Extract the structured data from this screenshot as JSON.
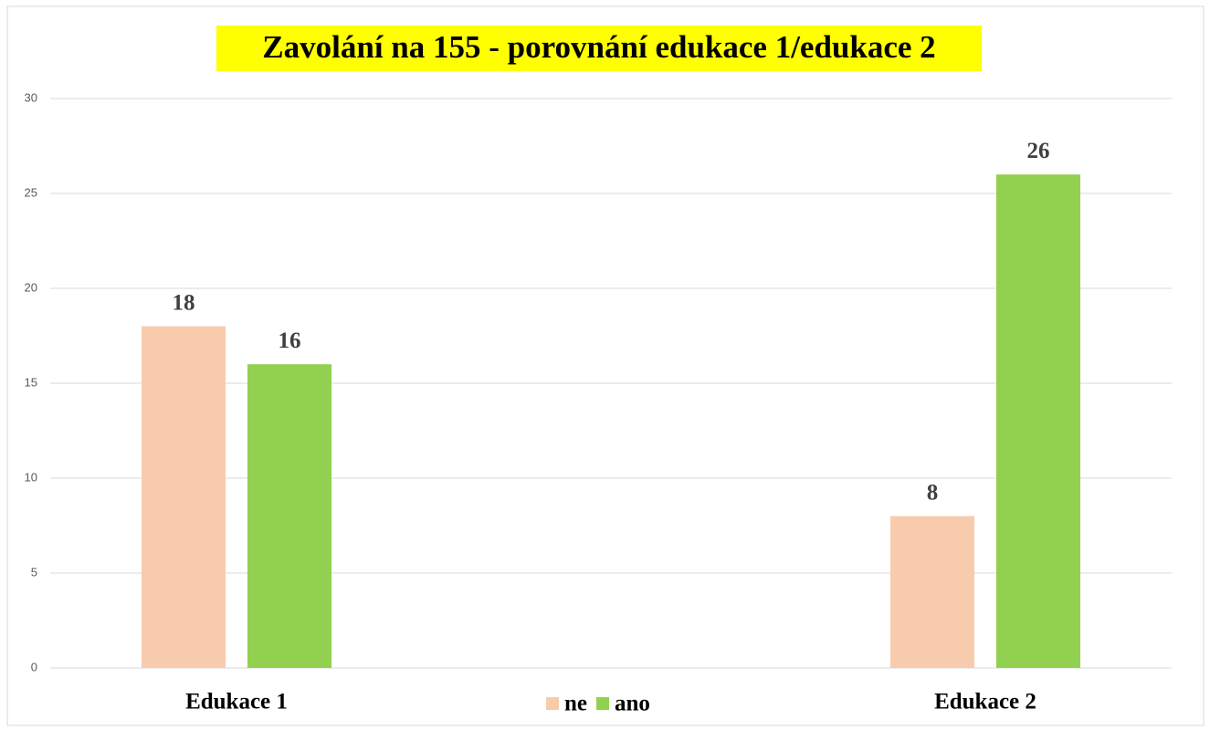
{
  "chart_data": {
    "type": "bar",
    "title": "Zavolání na 155 - porovnání edukace 1/edukace 2",
    "categories": [
      "Edukace 1",
      "Edukace 2"
    ],
    "series": [
      {
        "name": "ne",
        "color": "#f8cbad",
        "values": [
          18,
          8
        ]
      },
      {
        "name": "ano",
        "color": "#92d050",
        "values": [
          16,
          26
        ]
      }
    ],
    "ylim": [
      0,
      30
    ],
    "yticks": [
      0,
      5,
      10,
      15,
      20,
      25,
      30
    ],
    "grid": true,
    "legend": "bottom"
  }
}
